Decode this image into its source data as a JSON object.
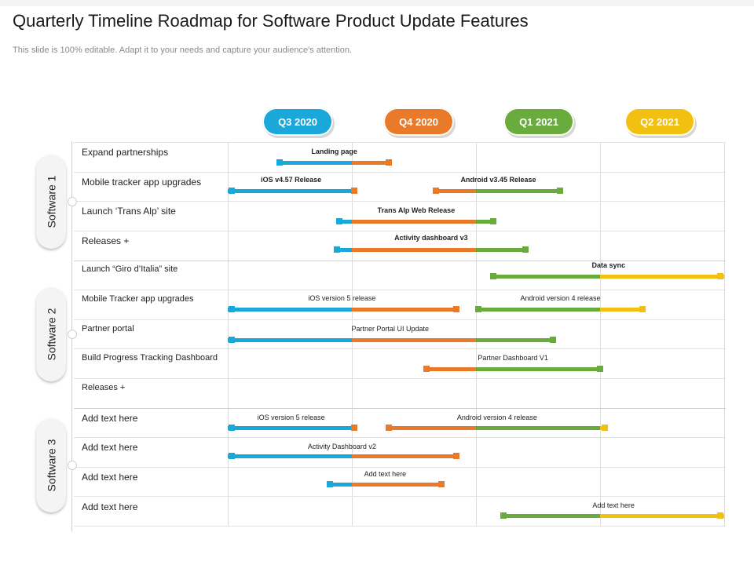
{
  "title": "Quarterly Timeline Roadmap for Software Product Update Features",
  "subtitle": "This slide is 100% editable. Adapt it to your needs and capture your audience's attention.",
  "quarters": [
    {
      "label": "Q3 2020",
      "color": "#1aa7d9"
    },
    {
      "label": "Q4 2020",
      "color": "#e87a2a"
    },
    {
      "label": "Q1 2021",
      "color": "#6aab3e"
    },
    {
      "label": "Q2 2021",
      "color": "#f2c011"
    }
  ],
  "groups": [
    {
      "label": "Software 1",
      "rows": [
        "Expand partnerships",
        "Mobile tracker app upgrades",
        "Launch ‘Trans Alp’ site",
        "Releases +"
      ]
    },
    {
      "label": "Software 2",
      "rows": [
        "Launch “Giro d’Italia” site",
        "Mobile Tracker app upgrades",
        "Partner portal",
        "Build Progress Tracking Dashboard",
        "Releases +"
      ]
    },
    {
      "label": "Software 3",
      "rows": [
        "Add text here",
        "Add text here",
        "Add text here",
        "Add text here"
      ]
    }
  ],
  "bars": [
    {
      "row": 0,
      "start": 0.42,
      "end": 1.3,
      "label": "Landing page",
      "bold": true
    },
    {
      "row": 1,
      "start": 0.0,
      "end": 1.02,
      "label": "iOS v4.57 Release",
      "bold": true
    },
    {
      "row": 1,
      "start": 1.68,
      "end": 2.68,
      "label": "Android v3.45 Release",
      "bold": true
    },
    {
      "row": 2,
      "start": 0.9,
      "end": 2.14,
      "label": "Trans Alp Web Release",
      "bold": true
    },
    {
      "row": 3,
      "start": 0.88,
      "end": 2.4,
      "label": "Activity  dashboard v3",
      "bold": true
    },
    {
      "row": 4,
      "start": 2.14,
      "end": 4.0,
      "label": "Data sync",
      "bold": true
    },
    {
      "row": 5,
      "start": 0.0,
      "end": 1.84,
      "label": "iOS version 5 release",
      "bold": false
    },
    {
      "row": 5,
      "start": 2.02,
      "end": 3.34,
      "label": "Android version 4 release",
      "bold": false
    },
    {
      "row": 6,
      "start": 0.0,
      "end": 2.62,
      "label": "Partner Portal UI Update",
      "bold": false
    },
    {
      "row": 7,
      "start": 1.6,
      "end": 3.0,
      "label": "Partner Dashboard V1",
      "bold": false
    },
    {
      "row": 9,
      "start": 0.0,
      "end": 1.02,
      "label": "iOS version 5 release",
      "bold": false
    },
    {
      "row": 9,
      "start": 1.3,
      "end": 3.04,
      "label": "Android version 4 release",
      "bold": false
    },
    {
      "row": 10,
      "start": 0.0,
      "end": 1.84,
      "label": "Activity Dashboard v2",
      "bold": false
    },
    {
      "row": 11,
      "start": 0.82,
      "end": 1.72,
      "label": "Add text here",
      "bold": false
    },
    {
      "row": 12,
      "start": 2.22,
      "end": 4.0,
      "label": "Add text here",
      "bold": false
    }
  ]
}
